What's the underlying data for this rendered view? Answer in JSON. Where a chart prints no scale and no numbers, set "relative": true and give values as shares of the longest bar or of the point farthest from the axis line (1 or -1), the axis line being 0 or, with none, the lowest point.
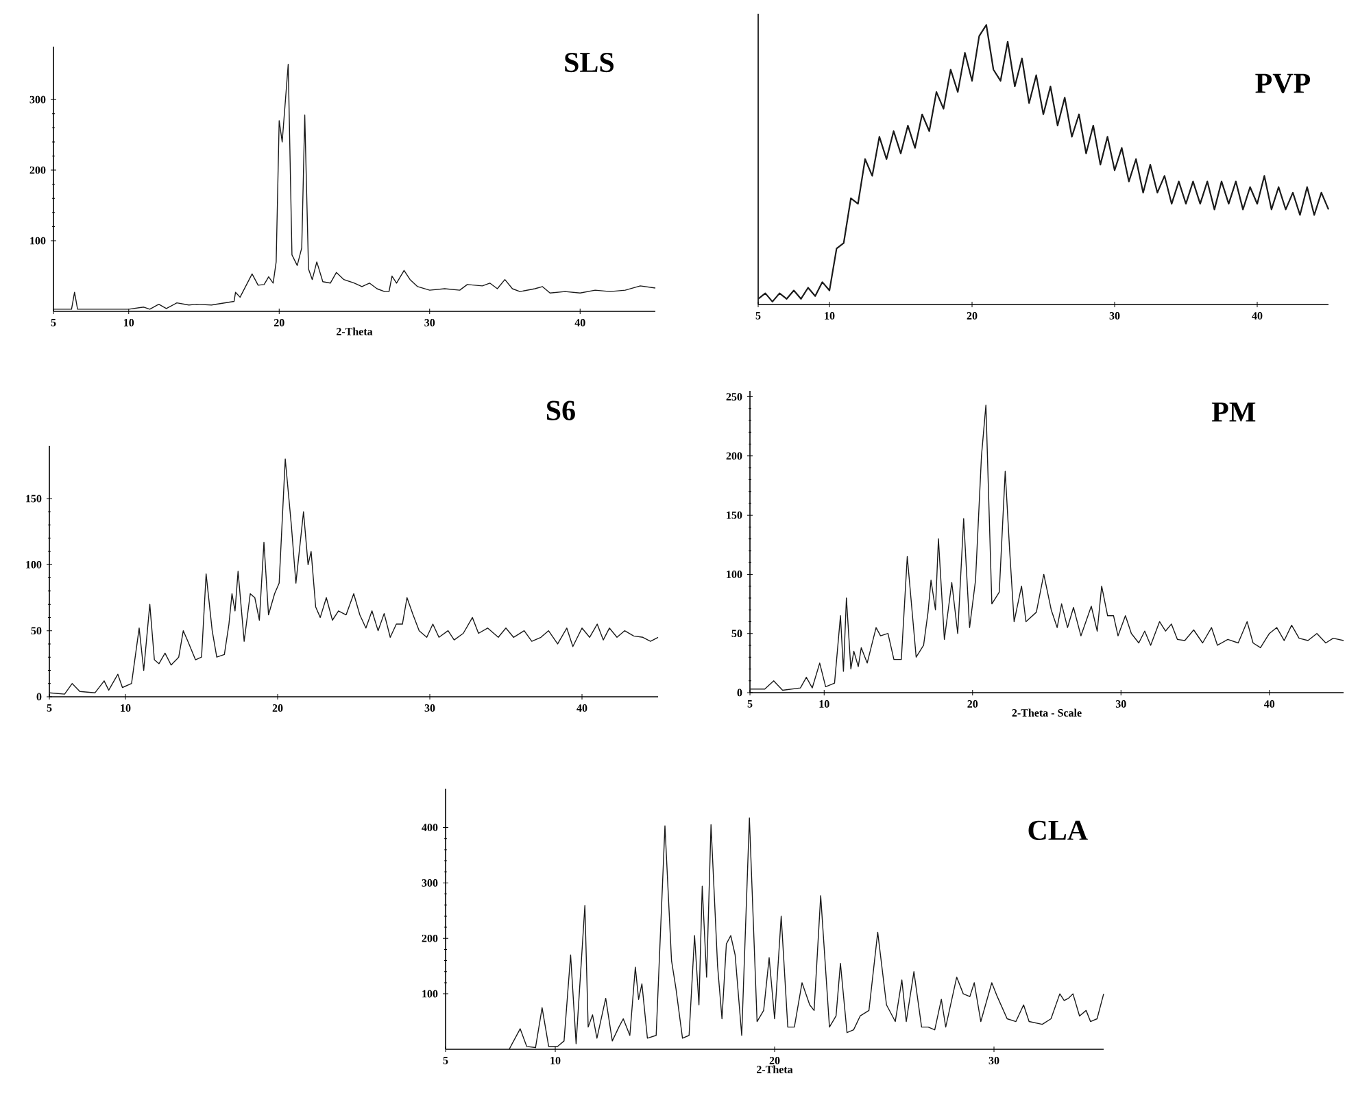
{
  "chart_data": [
    {
      "type": "line",
      "title": "SLS",
      "xlabel": "2-Theta",
      "xlim": [
        5,
        45
      ],
      "ylim": [
        0,
        375
      ],
      "xticks": [
        5,
        10,
        20,
        30,
        40
      ],
      "yticks": [
        100,
        200,
        300
      ],
      "x": [
        5,
        6.2,
        6.4,
        6.6,
        10,
        11,
        11.4,
        12,
        12.5,
        13.2,
        14,
        14.5,
        15.5,
        17,
        17.1,
        17.4,
        18.2,
        18.6,
        19.0,
        19.3,
        19.6,
        19.8,
        20.0,
        20.2,
        20.6,
        20.85,
        21.2,
        21.5,
        21.7,
        21.95,
        22.2,
        22.5,
        22.9,
        23.4,
        23.8,
        24.3,
        25,
        25.5,
        26,
        26.5,
        27,
        27.3,
        27.5,
        27.8,
        28.3,
        28.7,
        29.2,
        30,
        31,
        32,
        32.5,
        33.5,
        34,
        34.5,
        35,
        35.5,
        36,
        37,
        37.5,
        38,
        39,
        40,
        41,
        42,
        43,
        44,
        45
      ],
      "series": [
        {
          "color": "#1a1a1a",
          "values": [
            3,
            3,
            27,
            3,
            3,
            6,
            3,
            10,
            4,
            12,
            9,
            10,
            9,
            14,
            27,
            20,
            53,
            37,
            38,
            49,
            40,
            70,
            270,
            240,
            350,
            80,
            65,
            90,
            278,
            60,
            45,
            70,
            42,
            40,
            55,
            45,
            40,
            35,
            40,
            32,
            28,
            28,
            50,
            40,
            58,
            45,
            35,
            30,
            32,
            30,
            38,
            36,
            40,
            32,
            45,
            32,
            28,
            32,
            35,
            26,
            28,
            26,
            30,
            28,
            30,
            36,
            33
          ]
        }
      ]
    },
    {
      "type": "line",
      "title": "PVP",
      "relative": true,
      "xlim": [
        5,
        45
      ],
      "xticks": [
        5,
        10,
        20,
        30,
        40
      ],
      "x": [
        5,
        5.5,
        6,
        6.5,
        7,
        7.5,
        8,
        8.5,
        9,
        9.5,
        10,
        10.5,
        11,
        11.5,
        12,
        12.5,
        13,
        13.5,
        14,
        14.5,
        15,
        15.5,
        16,
        16.5,
        17,
        17.5,
        18,
        18.5,
        19,
        19.5,
        20,
        20.5,
        21,
        21.5,
        22,
        22.5,
        23,
        23.5,
        24,
        24.5,
        25,
        25.5,
        26,
        26.5,
        27,
        27.5,
        28,
        28.5,
        29,
        29.5,
        30,
        30.5,
        31,
        31.5,
        32,
        32.5,
        33,
        33.5,
        34,
        34.5,
        35,
        35.5,
        36,
        36.5,
        37,
        37.5,
        38,
        38.5,
        39,
        39.5,
        40,
        40.5,
        41,
        41.5,
        42,
        42.5,
        43,
        43.5,
        44,
        44.5,
        45
      ],
      "series": [
        {
          "color": "#1a1a1a",
          "values": [
            0.02,
            0.04,
            0.01,
            0.04,
            0.02,
            0.05,
            0.02,
            0.06,
            0.03,
            0.08,
            0.05,
            0.2,
            0.22,
            0.38,
            0.36,
            0.52,
            0.46,
            0.6,
            0.52,
            0.62,
            0.54,
            0.64,
            0.56,
            0.68,
            0.62,
            0.76,
            0.7,
            0.84,
            0.76,
            0.9,
            0.8,
            0.96,
            1.0,
            0.84,
            0.8,
            0.94,
            0.78,
            0.88,
            0.72,
            0.82,
            0.68,
            0.78,
            0.64,
            0.74,
            0.6,
            0.68,
            0.54,
            0.64,
            0.5,
            0.6,
            0.48,
            0.56,
            0.44,
            0.52,
            0.4,
            0.5,
            0.4,
            0.46,
            0.36,
            0.44,
            0.36,
            0.44,
            0.36,
            0.44,
            0.34,
            0.44,
            0.36,
            0.44,
            0.34,
            0.42,
            0.36,
            0.46,
            0.34,
            0.42,
            0.34,
            0.4,
            0.32,
            0.42,
            0.32,
            0.4,
            0.34
          ]
        }
      ]
    },
    {
      "type": "line",
      "title": "S6",
      "xlim": [
        5,
        45
      ],
      "ylim": [
        0,
        190
      ],
      "xticks": [
        5,
        10,
        20,
        30,
        40
      ],
      "yticks": [
        0,
        50,
        100,
        150
      ],
      "x": [
        5,
        6,
        6.5,
        7,
        8,
        8.6,
        8.9,
        9.5,
        9.8,
        10.4,
        10.9,
        11.2,
        11.6,
        11.9,
        12.2,
        12.6,
        13,
        13.5,
        13.8,
        14.1,
        14.6,
        15.0,
        15.3,
        15.7,
        16.0,
        16.5,
        16.8,
        17.0,
        17.2,
        17.4,
        17.8,
        18.2,
        18.5,
        18.8,
        19.1,
        19.4,
        19.8,
        20.1,
        20.5,
        20.9,
        21.2,
        21.7,
        22.0,
        22.2,
        22.5,
        22.8,
        23.2,
        23.6,
        24.0,
        24.5,
        25.0,
        25.4,
        25.8,
        26.2,
        26.6,
        27.0,
        27.4,
        27.8,
        28.2,
        28.5,
        28.9,
        29.3,
        29.8,
        30.2,
        30.6,
        31.2,
        31.6,
        32.2,
        32.8,
        33.2,
        33.8,
        34.5,
        35.0,
        35.5,
        36.2,
        36.7,
        37.3,
        37.8,
        38.4,
        39.0,
        39.4,
        40.0,
        40.5,
        41.0,
        41.4,
        41.8,
        42.3,
        42.8,
        43.4,
        44.0,
        44.5,
        45
      ],
      "series": [
        {
          "color": "#1a1a1a",
          "values": [
            3,
            2,
            10,
            4,
            3,
            12,
            5,
            17,
            7,
            10,
            52,
            20,
            70,
            28,
            25,
            33,
            24,
            30,
            50,
            42,
            28,
            30,
            93,
            50,
            30,
            32,
            55,
            78,
            65,
            95,
            42,
            78,
            75,
            58,
            117,
            62,
            78,
            86,
            180,
            130,
            86,
            140,
            100,
            110,
            68,
            60,
            75,
            58,
            65,
            62,
            78,
            62,
            52,
            65,
            50,
            63,
            45,
            55,
            55,
            75,
            62,
            50,
            45,
            55,
            45,
            50,
            43,
            48,
            60,
            48,
            52,
            45,
            52,
            45,
            50,
            42,
            45,
            50,
            40,
            52,
            38,
            52,
            45,
            55,
            43,
            52,
            45,
            50,
            46,
            45,
            42,
            45
          ]
        }
      ]
    },
    {
      "type": "line",
      "title": "PM",
      "xlabel": "2-Theta - Scale",
      "xlim": [
        5,
        45
      ],
      "ylim": [
        0,
        255
      ],
      "xticks": [
        5,
        10,
        20,
        30,
        40
      ],
      "yticks": [
        0,
        50,
        100,
        150,
        200,
        250
      ],
      "x": [
        5,
        6,
        6.6,
        7.2,
        8.4,
        8.8,
        9.2,
        9.7,
        10.1,
        10.7,
        11.1,
        11.3,
        11.5,
        11.8,
        12,
        12.3,
        12.5,
        12.9,
        13.2,
        13.5,
        13.8,
        14.3,
        14.7,
        15.2,
        15.6,
        16.2,
        16.7,
        17,
        17.2,
        17.5,
        17.7,
        18.1,
        18.6,
        19,
        19.4,
        19.8,
        20.2,
        20.6,
        20.9,
        21.3,
        21.8,
        22.2,
        22.5,
        22.8,
        23.3,
        23.6,
        24.3,
        24.8,
        25.3,
        25.7,
        26,
        26.4,
        26.8,
        27.3,
        28,
        28.4,
        28.7,
        29.1,
        29.5,
        29.8,
        30.3,
        30.7,
        31.2,
        31.6,
        32,
        32.6,
        33,
        33.4,
        33.8,
        34.3,
        34.9,
        35.5,
        36.1,
        36.5,
        37.2,
        37.9,
        38.5,
        38.9,
        39.4,
        40,
        40.5,
        41,
        41.5,
        42,
        42.6,
        43.2,
        43.8,
        44.3,
        45
      ],
      "series": [
        {
          "color": "#1a1a1a",
          "values": [
            3,
            3,
            10,
            2,
            4,
            13,
            4,
            25,
            5,
            8,
            65,
            18,
            80,
            20,
            35,
            22,
            38,
            25,
            40,
            55,
            48,
            50,
            28,
            28,
            115,
            30,
            40,
            68,
            95,
            70,
            130,
            45,
            93,
            50,
            147,
            55,
            95,
            200,
            243,
            75,
            85,
            187,
            120,
            60,
            90,
            60,
            68,
            100,
            70,
            55,
            75,
            55,
            72,
            48,
            73,
            52,
            90,
            65,
            65,
            48,
            65,
            50,
            42,
            52,
            40,
            60,
            52,
            58,
            45,
            44,
            53,
            42,
            55,
            40,
            45,
            42,
            60,
            42,
            38,
            50,
            55,
            44,
            57,
            46,
            44,
            50,
            42,
            46,
            44
          ]
        }
      ]
    },
    {
      "type": "line",
      "title": "CLA",
      "xlabel": "2-Theta",
      "xlim": [
        5,
        35
      ],
      "ylim": [
        0,
        470
      ],
      "xticks": [
        5,
        10,
        20,
        30
      ],
      "yticks": [
        100,
        200,
        300,
        400
      ],
      "x": [
        7.9,
        8.4,
        8.7,
        9.1,
        9.4,
        9.7,
        10.1,
        10.4,
        10.7,
        10.95,
        11.35,
        11.5,
        11.7,
        11.9,
        12.3,
        12.6,
        12.9,
        13.1,
        13.4,
        13.65,
        13.8,
        13.95,
        14.2,
        14.6,
        15.0,
        15.3,
        15.5,
        15.8,
        16.1,
        16.35,
        16.55,
        16.7,
        16.9,
        17.1,
        17.4,
        17.6,
        17.8,
        18.0,
        18.2,
        18.5,
        18.85,
        19.2,
        19.5,
        19.75,
        20.0,
        20.3,
        20.6,
        20.9,
        21.25,
        21.6,
        21.8,
        22.1,
        22.5,
        22.8,
        23.0,
        23.3,
        23.6,
        23.9,
        24.3,
        24.7,
        25.1,
        25.5,
        25.8,
        26.0,
        26.35,
        26.7,
        27.0,
        27.3,
        27.6,
        27.8,
        28.3,
        28.6,
        28.9,
        29.1,
        29.4,
        29.9,
        30.15,
        30.6,
        31.0,
        31.35,
        31.6,
        32.2,
        32.6,
        33.0,
        33.2,
        33.4,
        33.6,
        33.9,
        34.2,
        34.4,
        34.7,
        35.0
      ],
      "series": [
        {
          "color": "#1a1a1a",
          "values": [
            0,
            37,
            5,
            3,
            75,
            5,
            5,
            15,
            170,
            10,
            259,
            40,
            62,
            20,
            92,
            15,
            40,
            55,
            25,
            148,
            90,
            118,
            20,
            25,
            403,
            160,
            110,
            20,
            25,
            205,
            80,
            294,
            130,
            405,
            150,
            55,
            190,
            205,
            170,
            25,
            417,
            50,
            70,
            165,
            55,
            240,
            40,
            40,
            120,
            80,
            70,
            277,
            40,
            60,
            155,
            30,
            35,
            60,
            70,
            211,
            80,
            50,
            125,
            50,
            140,
            40,
            40,
            35,
            90,
            40,
            130,
            100,
            95,
            120,
            50,
            120,
            95,
            55,
            50,
            80,
            50,
            45,
            55,
            100,
            88,
            92,
            100,
            60,
            70,
            50,
            55,
            100
          ]
        }
      ]
    }
  ]
}
